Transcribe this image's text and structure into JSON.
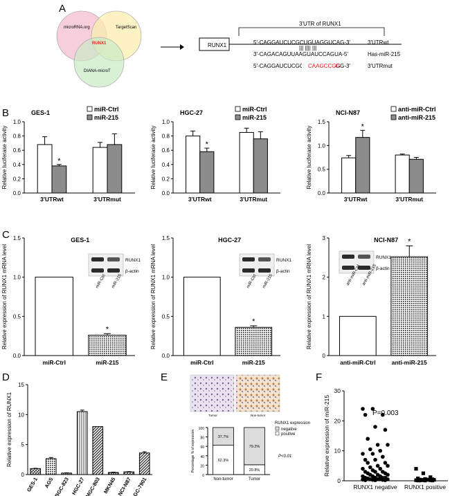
{
  "panels": {
    "A": {
      "letter": "A",
      "venn": {
        "circles": [
          {
            "label": "microRNA.org",
            "color": "#f6c6d6"
          },
          {
            "label": "TargetScan",
            "color": "#fbeeb0"
          },
          {
            "label": "DIANA-microT",
            "color": "#c9e9c6"
          }
        ],
        "center_label": "RUNX1",
        "center_color": "#e8221c"
      },
      "utr": {
        "gene_box": "RUNX1",
        "bracket_label": "3'UTR of RUNX1",
        "lines": [
          {
            "seq": "5'-CAGGAUCUCGCUGUAGGUCAG-3'",
            "label": "3'UTRwt"
          },
          {
            "seq": "3'-CAGACAGUUAAGUAUCCAGUA-5'",
            "label": "Has-miR-215"
          },
          {
            "seq": "5'-CAGGAUCUCGCUGCAAGCCGG-3'",
            "label": "3'UTRmut"
          }
        ],
        "mut_highlight": "CAAGCCGG",
        "mut_color": "#e8221c",
        "pairing_marks": "|||   ||||  |||"
      }
    },
    "B": {
      "letter": "B",
      "ylabel": "Relative luciferase activity",
      "star": "*"
    },
    "C": {
      "letter": "C",
      "ylabel": "Relative expression of RUNX1 mRNA level",
      "star": "*",
      "blot_labels": [
        "RUNX1",
        "β-actin"
      ]
    },
    "D": {
      "letter": "D"
    },
    "E": {
      "letter": "E",
      "ihc_captions": [
        "Tumor",
        "Non-tumor"
      ],
      "legend_title": "RUNX1 expression",
      "legend": [
        "negative",
        "positive"
      ],
      "pvalue": "P<0.01"
    },
    "F": {
      "letter": "F",
      "pvalue": "P=0.003"
    }
  },
  "chart_data": [
    {
      "panel": "B1",
      "type": "bar",
      "title": "GES-1",
      "categories": [
        "3'UTRwt",
        "3'UTRmut"
      ],
      "series": [
        {
          "name": "miR-Ctrl",
          "fill": "#ffffff",
          "values": [
            0.68,
            0.64
          ],
          "errors": [
            0.11,
            0.07
          ]
        },
        {
          "name": "miR-215",
          "fill": "#8c8c8c",
          "values": [
            0.38,
            0.68
          ],
          "errors": [
            0.02,
            0.15
          ]
        }
      ],
      "ylabel": "Relative luciferase activity",
      "ylim": [
        0,
        1.0
      ],
      "yticks": [
        "0.0",
        "0.2",
        "0.4",
        "0.6",
        "0.8",
        "1.0"
      ],
      "stars": [
        {
          "category": 0,
          "series": 1,
          "text": "*"
        }
      ]
    },
    {
      "panel": "B2",
      "type": "bar",
      "title": "HGC-27",
      "categories": [
        "3'UTRwt",
        "3'UTRmut"
      ],
      "series": [
        {
          "name": "miR-Ctrl",
          "fill": "#ffffff",
          "values": [
            0.8,
            0.85
          ],
          "errors": [
            0.07,
            0.06
          ]
        },
        {
          "name": "miR-215",
          "fill": "#8c8c8c",
          "values": [
            0.58,
            0.76
          ],
          "errors": [
            0.05,
            0.1
          ]
        }
      ],
      "ylabel": "Relative luciferase activity",
      "ylim": [
        0,
        1.0
      ],
      "yticks": [
        "0.0",
        "0.2",
        "0.4",
        "0.6",
        "0.8",
        "1.0"
      ],
      "stars": [
        {
          "category": 0,
          "series": 1,
          "text": "*"
        }
      ]
    },
    {
      "panel": "B3",
      "type": "bar",
      "title": "NCI-N87",
      "categories": [
        "3'UTRwt",
        "3'UTRmut"
      ],
      "series": [
        {
          "name": "anti-miR-Ctrl",
          "fill": "#ffffff",
          "values": [
            0.74,
            0.8
          ],
          "errors": [
            0.05,
            0.02
          ]
        },
        {
          "name": "anti-miR-215",
          "fill": "#8c8c8c",
          "values": [
            1.17,
            0.71
          ],
          "errors": [
            0.15,
            0.04
          ]
        }
      ],
      "ylabel": "Relative luciferase activity",
      "ylim": [
        0,
        1.5
      ],
      "yticks": [
        "0.0",
        "0.5",
        "1.0",
        "1.5"
      ],
      "stars": [
        {
          "category": 0,
          "series": 1,
          "text": "*"
        }
      ]
    },
    {
      "panel": "C1",
      "type": "bar",
      "title": "GES-1",
      "categories": [
        "miR-Ctrl",
        "miR-215"
      ],
      "values": [
        1.0,
        0.26
      ],
      "errors": [
        0,
        0.02
      ],
      "fills": [
        "white",
        "dots"
      ],
      "ylabel": "Relative expression of RUNX1 mRNA level",
      "ylim": [
        0,
        1.5
      ],
      "yticks": [
        "0.0",
        "0.5",
        "1.0",
        "1.5"
      ],
      "blot_lanes": [
        "miR-Ctrl",
        "miR-215"
      ],
      "stars": [
        {
          "index": 1,
          "text": "*"
        }
      ]
    },
    {
      "panel": "C2",
      "type": "bar",
      "title": "HGC-27",
      "categories": [
        "miR-Ctrl",
        "miR-215"
      ],
      "values": [
        1.0,
        0.36
      ],
      "errors": [
        0,
        0.02
      ],
      "fills": [
        "white",
        "dots"
      ],
      "ylabel": "Relative expression of RUNX1 mRNA level",
      "ylim": [
        0,
        1.5
      ],
      "yticks": [
        "0.0",
        "0.5",
        "1.0",
        "1.5"
      ],
      "blot_lanes": [
        "miR-Ctrl",
        "miR-215"
      ],
      "stars": [
        {
          "index": 1,
          "text": "*"
        }
      ]
    },
    {
      "panel": "C3",
      "type": "bar",
      "title": "NCI-N87",
      "categories": [
        "anti-miR-Ctrl",
        "anti-miR-215"
      ],
      "values": [
        1.0,
        2.52
      ],
      "errors": [
        0,
        0.28
      ],
      "fills": [
        "white",
        "dots"
      ],
      "ylabel": "Relative expression of RUNX1 mRNA level",
      "ylim": [
        0,
        3
      ],
      "yticks": [
        "0",
        "1",
        "2",
        "3"
      ],
      "blot_lanes": [
        "anti-miR-Ctrl",
        "anti-miR-215"
      ],
      "stars": [
        {
          "index": 1,
          "text": "*"
        }
      ]
    },
    {
      "panel": "D",
      "type": "bar",
      "title": "",
      "categories": [
        "GES-1",
        "AGS",
        "BGC-823",
        "HGC-27",
        "MGC-803",
        "MKN45",
        "NCI-N87",
        "SGC-7901"
      ],
      "values": [
        1.0,
        2.65,
        0.25,
        10.5,
        8.0,
        0.35,
        0.45,
        3.6
      ],
      "errors": [
        0.05,
        0.2,
        0.05,
        0.25,
        0,
        0.05,
        0.05,
        0.2
      ],
      "fills": [
        "hatch-a",
        "dots",
        "hatch-b",
        "vlines",
        "diag",
        "hatch-b",
        "hatch-a",
        "diag"
      ],
      "ylabel": "Relative expression of RUNX1",
      "ylim": [
        0,
        15
      ],
      "yticks": [
        "0",
        "5",
        "10",
        "15"
      ]
    },
    {
      "panel": "E",
      "type": "bar",
      "title": "",
      "categories": [
        "Non-tumor",
        "Tumor"
      ],
      "stacked": true,
      "series": [
        {
          "name": "positive",
          "fill": "#ffffff",
          "values": [
            62.3,
            20.8
          ],
          "labels": [
            "62.3%",
            "20.8%"
          ]
        },
        {
          "name": "negative",
          "fill": "#dcdcdc",
          "values": [
            37.7,
            79.2
          ],
          "labels": [
            "37.7%",
            "79.2%"
          ]
        }
      ],
      "ylabel": "Percentage % of expression",
      "ylim": [
        0,
        100
      ],
      "yticks": [
        "0",
        "20",
        "40",
        "60",
        "80",
        "100"
      ],
      "annotation": "P<0.01"
    },
    {
      "panel": "F",
      "type": "scatter",
      "title": "",
      "categories": [
        "RUNX1 negative",
        "RUNX1 positive"
      ],
      "groups": [
        {
          "name": "RUNX1 negative",
          "marker": "circle",
          "values": [
            24.0,
            24.0,
            22.0,
            22.0,
            18.0,
            17.0,
            14.0,
            12.0,
            12.0,
            10.5,
            10.0,
            9.0,
            9.0,
            8.0,
            7.0,
            7.0,
            6.0,
            6.0,
            5.0,
            5.0,
            4.5,
            4.0,
            4.0,
            3.5,
            3.0,
            3.0,
            3.0,
            2.5,
            2.5,
            2.0,
            2.0,
            2.0,
            1.5,
            1.5,
            1.5,
            1.0,
            1.0,
            1.0,
            1.0,
            0.8,
            0.6,
            0.5,
            0.5,
            0.5,
            0.4,
            0.3,
            0.3,
            0.2,
            0.2,
            0.2
          ]
        },
        {
          "name": "RUNX1 positive",
          "marker": "square",
          "values": [
            4.0,
            2.5,
            1.2,
            0.8,
            0.6,
            0.5,
            0.4,
            0.4,
            0.3,
            0.3,
            0.3,
            0.2,
            0.2,
            0.2,
            0.1,
            0.1,
            0.1,
            0.1
          ]
        }
      ],
      "ylabel": "Relative expression of miR-215",
      "ylim": [
        0,
        30
      ],
      "yticks": [
        "0",
        "10",
        "20",
        "30"
      ],
      "annotation": "P=0.003"
    }
  ]
}
